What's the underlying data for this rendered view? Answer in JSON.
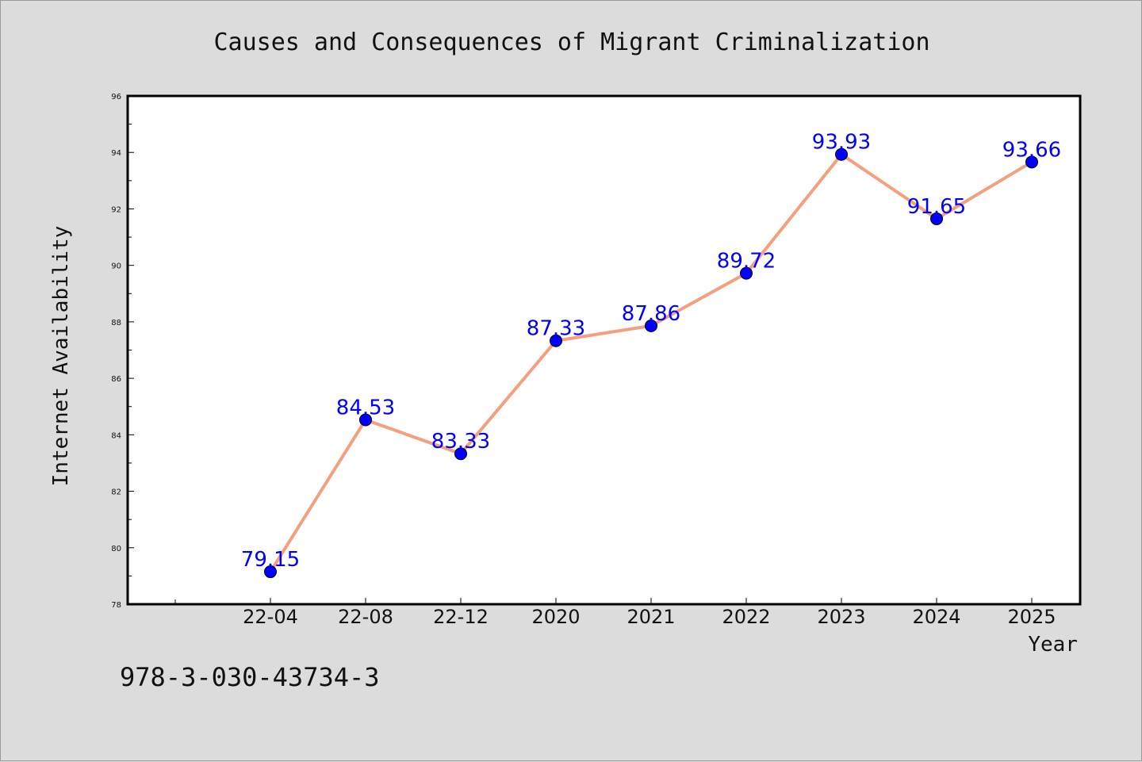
{
  "chart_data": {
    "type": "line",
    "title": "Causes and Consequences of Migrant Criminalization",
    "xlabel": "Year",
    "ylabel": "Internet Availability",
    "categories": [
      "22-04",
      "22-08",
      "22-12",
      "2020",
      "2021",
      "2022",
      "2023",
      "2024",
      "2025"
    ],
    "series": [
      {
        "values": [
          79.15,
          84.53,
          83.33,
          87.33,
          87.86,
          89.72,
          93.93,
          91.65,
          93.66
        ],
        "labels": [
          "79.15",
          "84.53",
          "83.33",
          "87.33",
          "87.86",
          "89.72",
          "93.93",
          "91.65",
          "93.66"
        ]
      }
    ],
    "ylim": [
      78,
      96
    ],
    "yticks": [
      "78",
      "80",
      "82",
      "84",
      "86",
      "88",
      "90",
      "92",
      "94",
      "96"
    ],
    "grid": false,
    "legend": "none",
    "colors": {
      "line": "#f4a07e",
      "marker": "#0000ff",
      "data_label": "#0000ff",
      "plot_bg": "#ffffff",
      "figure_bg": "#dcdcdc"
    }
  },
  "footer": {
    "isbn": "978-3-030-43734-3"
  }
}
